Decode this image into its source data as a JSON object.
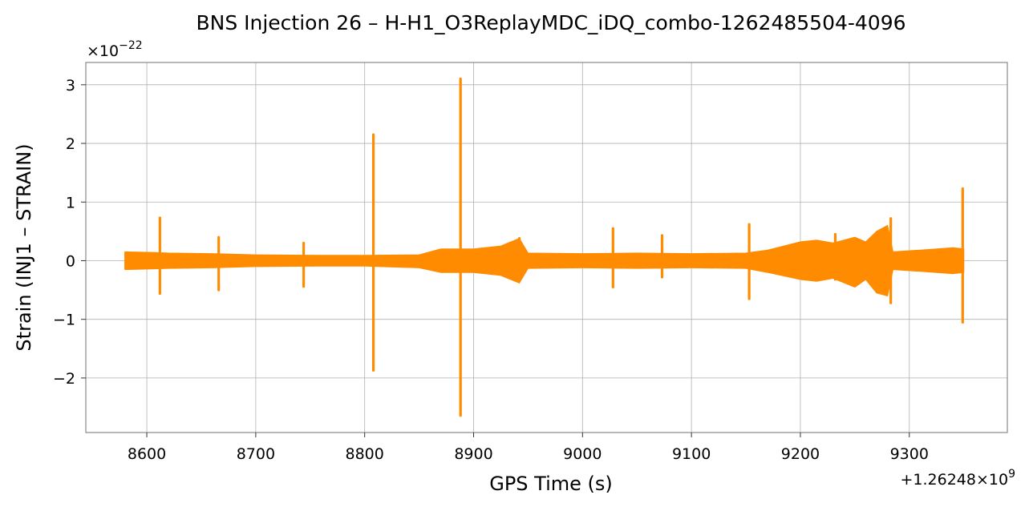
{
  "chart_data": {
    "type": "line",
    "title": "BNS Injection 26 – H-H1_O3ReplayMDC_iDQ_combo-1262485504-4096",
    "xlabel": "GPS Time (s)",
    "ylabel": "Strain (INJ1 – STRAIN)",
    "x_offset_text": "+1.26248×10",
    "x_offset_exp": "9",
    "y_scale_text": "×10",
    "y_scale_exp": "−22",
    "xlim": [
      8544,
      9390
    ],
    "ylim": [
      -2.93,
      3.38
    ],
    "xticks": [
      8600,
      8700,
      8800,
      8900,
      9000,
      9100,
      9200,
      9300
    ],
    "xtick_labels": [
      "8600",
      "8700",
      "8800",
      "8900",
      "9000",
      "9100",
      "9200",
      "9300"
    ],
    "yticks": [
      -2,
      -1,
      0,
      1,
      2,
      3
    ],
    "ytick_labels": [
      "−2",
      "−1",
      "0",
      "1",
      "2",
      "3"
    ],
    "grid": true,
    "series_color": "#ff8c00",
    "series": [
      {
        "envelope_upper": [
          [
            8580,
            0.15
          ],
          [
            8605,
            0.14
          ],
          [
            8620,
            0.13
          ],
          [
            8660,
            0.12
          ],
          [
            8700,
            0.1
          ],
          [
            8760,
            0.09
          ],
          [
            8800,
            0.09
          ],
          [
            8850,
            0.1
          ],
          [
            8870,
            0.2
          ],
          [
            8900,
            0.2
          ],
          [
            8925,
            0.25
          ],
          [
            8942,
            0.38
          ],
          [
            8950,
            0.13
          ],
          [
            9000,
            0.12
          ],
          [
            9050,
            0.13
          ],
          [
            9100,
            0.12
          ],
          [
            9150,
            0.13
          ],
          [
            9170,
            0.18
          ],
          [
            9200,
            0.32
          ],
          [
            9215,
            0.35
          ],
          [
            9230,
            0.3
          ],
          [
            9250,
            0.4
          ],
          [
            9260,
            0.32
          ],
          [
            9270,
            0.5
          ],
          [
            9280,
            0.6
          ],
          [
            9285,
            0.15
          ],
          [
            9310,
            0.18
          ],
          [
            9340,
            0.22
          ],
          [
            9350,
            0.2
          ]
        ],
        "envelope_lower": [
          [
            8580,
            -0.15
          ],
          [
            8605,
            -0.14
          ],
          [
            8620,
            -0.13
          ],
          [
            8660,
            -0.12
          ],
          [
            8700,
            -0.1
          ],
          [
            8760,
            -0.09
          ],
          [
            8800,
            -0.09
          ],
          [
            8850,
            -0.12
          ],
          [
            8870,
            -0.2
          ],
          [
            8900,
            -0.2
          ],
          [
            8925,
            -0.25
          ],
          [
            8942,
            -0.38
          ],
          [
            8950,
            -0.13
          ],
          [
            9000,
            -0.12
          ],
          [
            9050,
            -0.13
          ],
          [
            9100,
            -0.12
          ],
          [
            9150,
            -0.13
          ],
          [
            9170,
            -0.2
          ],
          [
            9200,
            -0.32
          ],
          [
            9215,
            -0.35
          ],
          [
            9230,
            -0.3
          ],
          [
            9250,
            -0.45
          ],
          [
            9260,
            -0.32
          ],
          [
            9270,
            -0.55
          ],
          [
            9280,
            -0.6
          ],
          [
            9285,
            -0.15
          ],
          [
            9310,
            -0.18
          ],
          [
            9340,
            -0.22
          ],
          [
            9350,
            -0.2
          ]
        ],
        "spikes": [
          [
            8612,
            0.73,
            -0.56
          ],
          [
            8666,
            0.4,
            -0.5
          ],
          [
            8744,
            0.3,
            -0.44
          ],
          [
            8808,
            2.15,
            -1.87
          ],
          [
            8888,
            3.1,
            -2.64
          ],
          [
            8942,
            0.38,
            -0.35
          ],
          [
            9028,
            0.55,
            -0.45
          ],
          [
            9073,
            0.43,
            -0.28
          ],
          [
            9153,
            0.62,
            -0.65
          ],
          [
            9232,
            0.45,
            -0.32
          ],
          [
            9283,
            0.72,
            -0.72
          ],
          [
            9349,
            1.23,
            -1.05
          ]
        ]
      }
    ]
  }
}
